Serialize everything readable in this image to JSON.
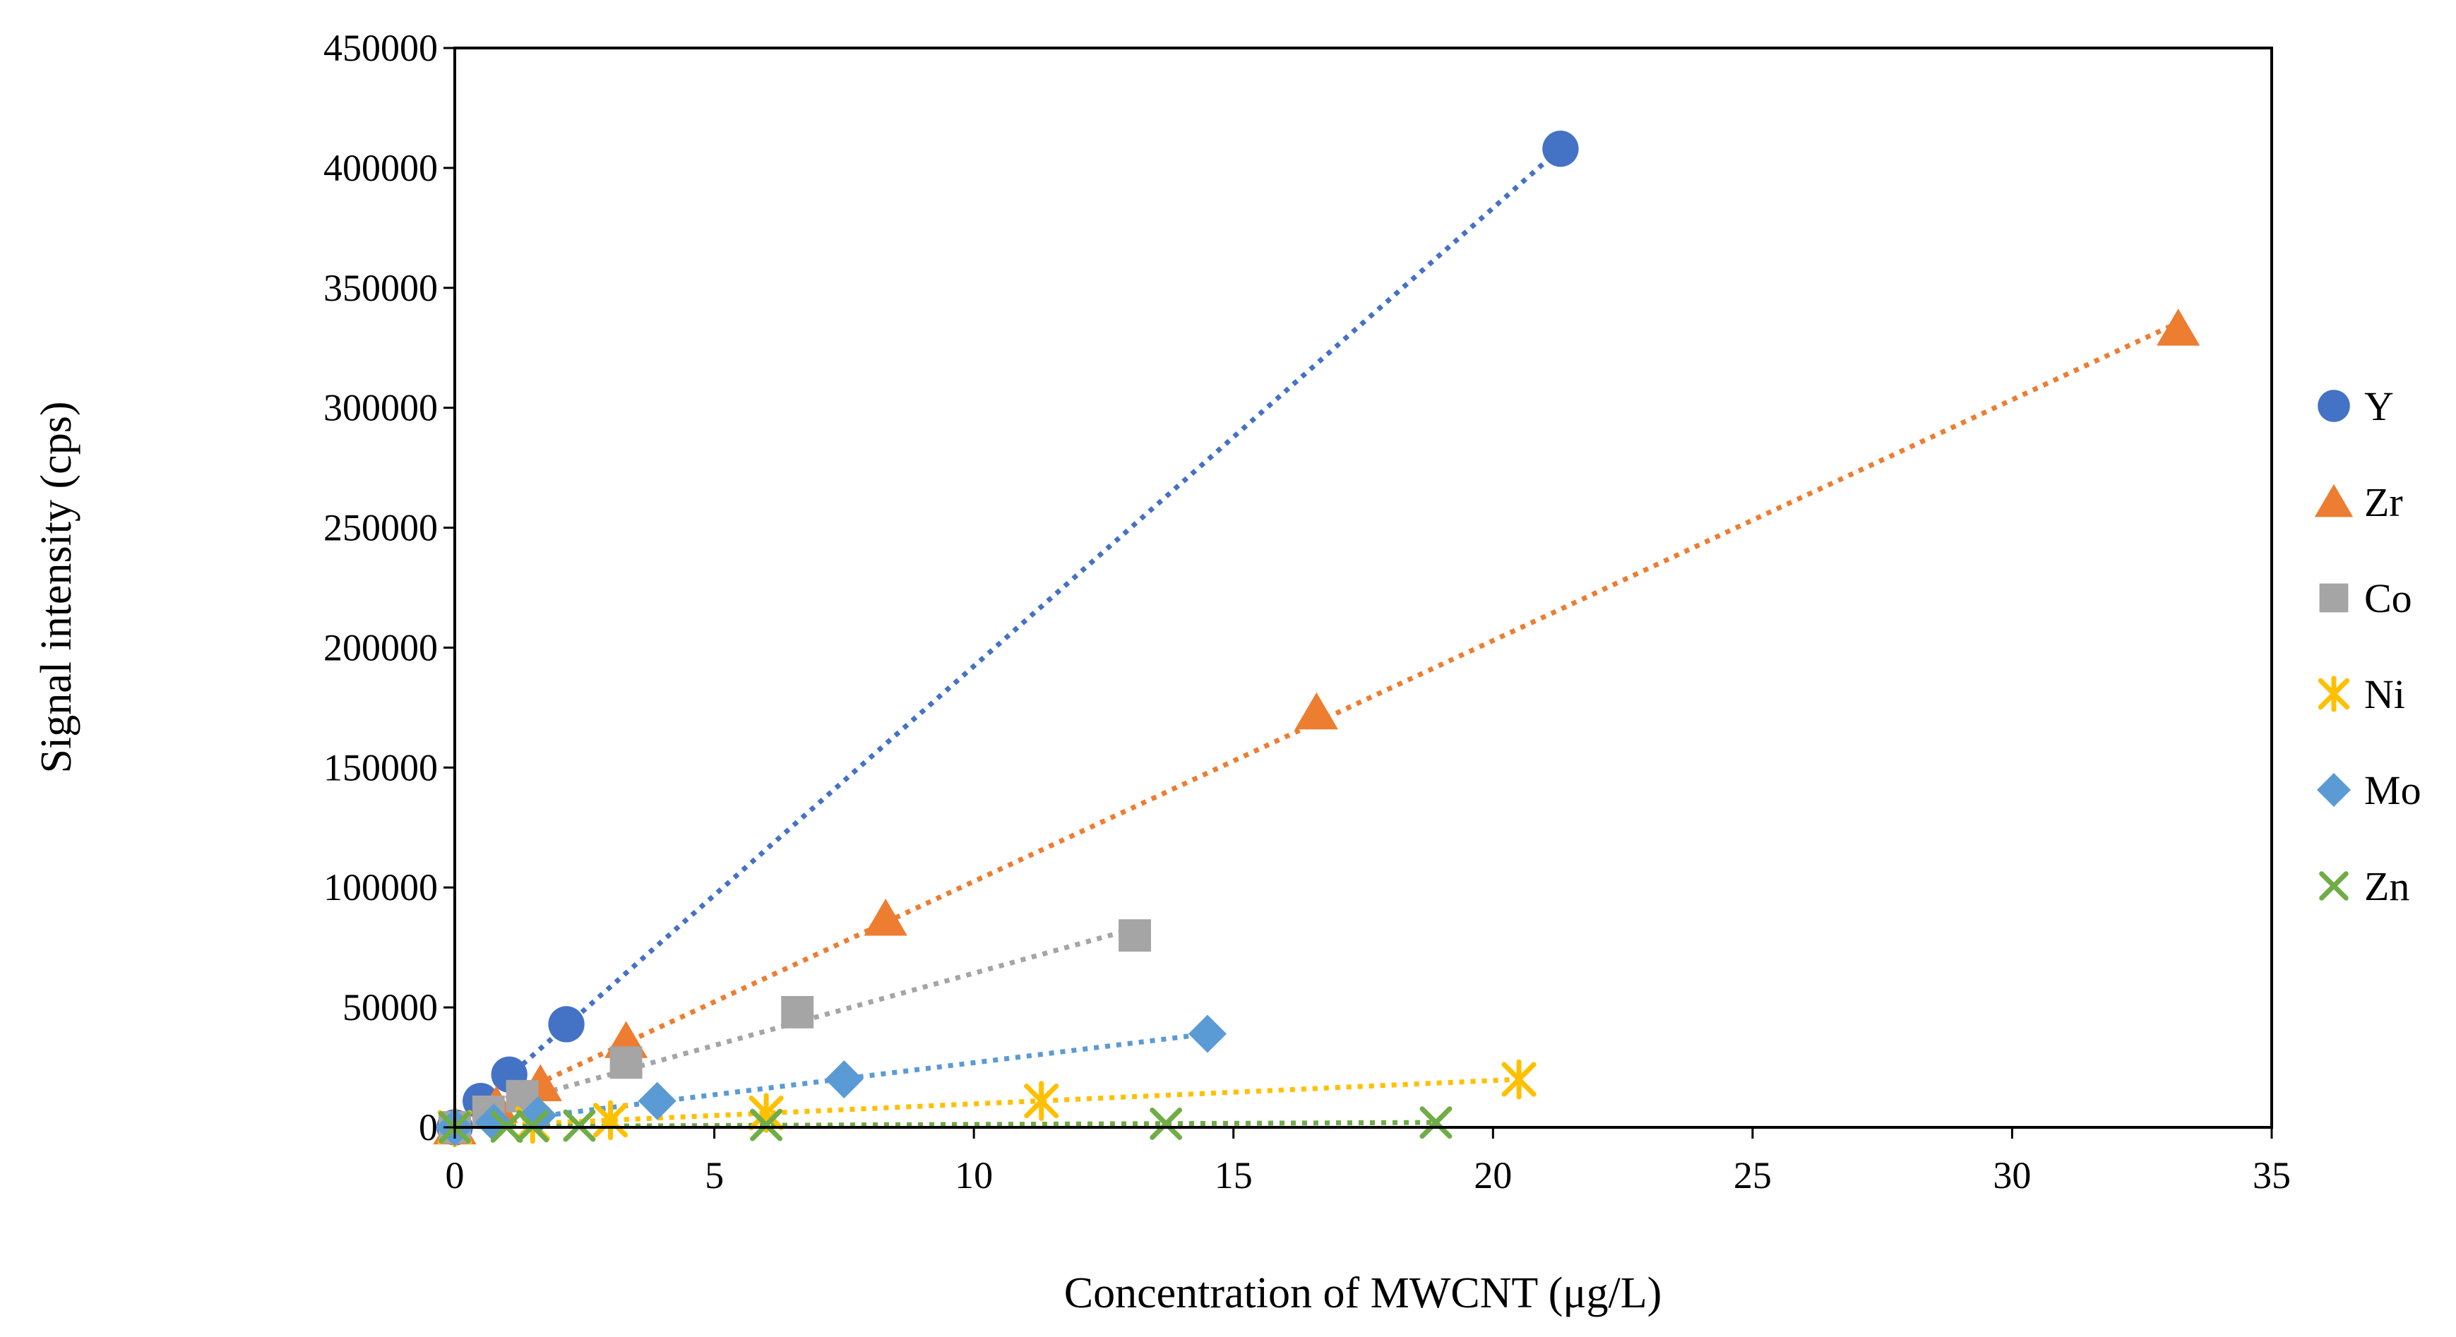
{
  "chart_data": {
    "type": "scatter",
    "title": "",
    "xlabel": "Concentration of MWCNT (μg/L)",
    "ylabel": "Signal intensity (cps)",
    "xlim": [
      0,
      35
    ],
    "ylim": [
      0,
      450000
    ],
    "xticks": [
      0,
      5,
      10,
      15,
      20,
      25,
      30,
      35
    ],
    "yticks": [
      0,
      50000,
      100000,
      150000,
      200000,
      250000,
      300000,
      350000,
      400000,
      450000
    ],
    "grid": false,
    "trendlines": "linear, dotted",
    "legend_position": "right",
    "series": [
      {
        "name": "Y",
        "marker": "circle",
        "color": "#4472C4",
        "points": [
          [
            0,
            0
          ],
          [
            0.5,
            11000
          ],
          [
            1.05,
            22000
          ],
          [
            2.15,
            43000
          ],
          [
            21.3,
            408000
          ]
        ]
      },
      {
        "name": "Zr",
        "marker": "triangle",
        "color": "#ED7D31",
        "points": [
          [
            0,
            0
          ],
          [
            0.8,
            9000
          ],
          [
            1.65,
            18000
          ],
          [
            3.3,
            36000
          ],
          [
            8.3,
            87000
          ],
          [
            16.6,
            173000
          ],
          [
            33.2,
            333000
          ]
        ]
      },
      {
        "name": "Co",
        "marker": "square",
        "color": "#A5A5A5",
        "points": [
          [
            0,
            0
          ],
          [
            0.65,
            6500
          ],
          [
            1.3,
            13000
          ],
          [
            3.3,
            27000
          ],
          [
            6.6,
            48000
          ],
          [
            13.1,
            80000
          ]
        ]
      },
      {
        "name": "Ni",
        "marker": "star",
        "color": "#FFC000",
        "points": [
          [
            0,
            0
          ],
          [
            1.5,
            1500
          ],
          [
            3.0,
            3000
          ],
          [
            6.0,
            6000
          ],
          [
            11.3,
            11000
          ],
          [
            20.5,
            20000
          ]
        ]
      },
      {
        "name": "Mo",
        "marker": "diamond",
        "color": "#5B9BD5",
        "points": [
          [
            0,
            0
          ],
          [
            0.75,
            2000
          ],
          [
            1.6,
            5000
          ],
          [
            3.9,
            11000
          ],
          [
            7.5,
            20000
          ],
          [
            14.5,
            39000
          ]
        ]
      },
      {
        "name": "Zn",
        "marker": "x",
        "color": "#70AD47",
        "points": [
          [
            0,
            0
          ],
          [
            1.0,
            300
          ],
          [
            1.5,
            500
          ],
          [
            2.4,
            700
          ],
          [
            6.0,
            1000
          ],
          [
            13.7,
            1500
          ],
          [
            18.9,
            2000
          ]
        ]
      }
    ]
  }
}
